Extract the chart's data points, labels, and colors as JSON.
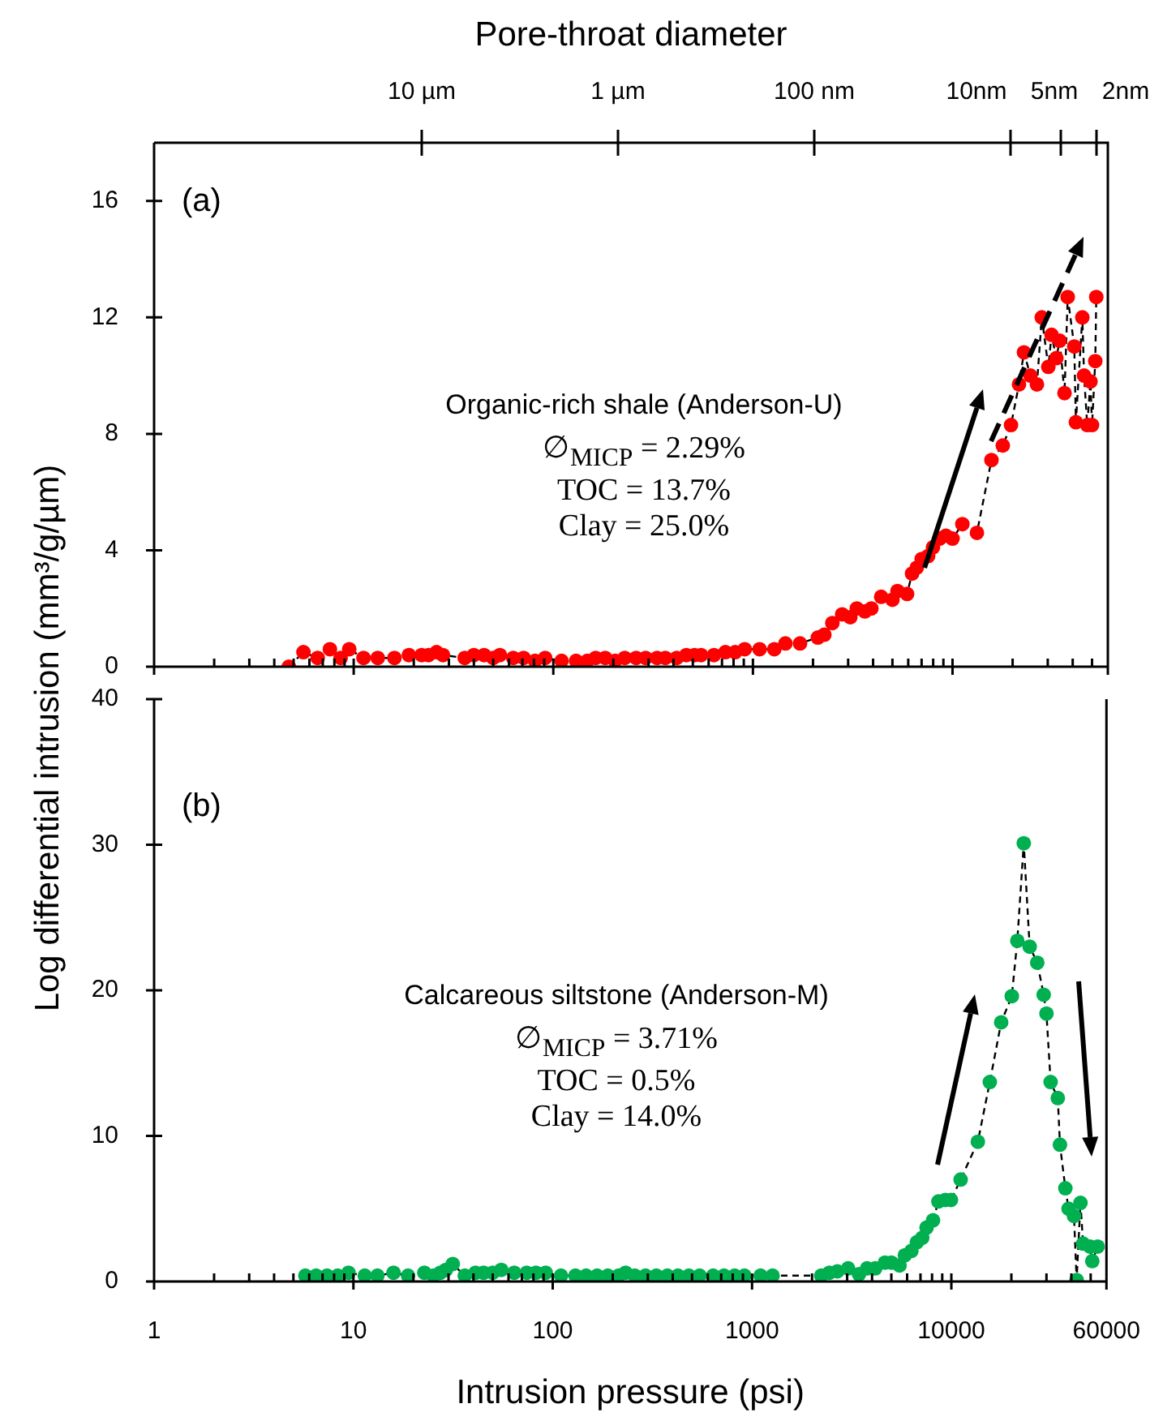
{
  "chart_data": [
    {
      "type": "line",
      "x2label": "Pore-throat diameter",
      "ylabel": "Log differential intrusion (mm³/g/µm)",
      "annotations": [
        "(a)",
        "Organic-rich shale (Anderson-U)",
        "∅$_{MICP}$ = 2.29%",
        "TOC = 13.7%",
        "Clay = 25.0%",
        "10 µm",
        "1 µm",
        "100 nm",
        "10nm",
        "5nm",
        "2nm"
      ],
      "x": [
        4.73,
        5.6,
        6.6,
        7.6,
        8.6,
        9.5,
        11.2,
        13.2,
        16,
        18.9,
        21.9,
        23.7,
        26,
        28,
        36,
        40,
        45,
        50,
        54,
        63,
        71,
        81,
        91,
        110,
        130,
        148,
        163,
        182,
        204,
        228,
        260,
        290,
        331,
        364,
        415,
        464,
        510,
        550,
        638,
        728,
        815,
        910,
        1080,
        1280,
        1455,
        1722,
        2115,
        2280,
        2500,
        2800,
        3075,
        3315,
        3640,
        3920,
        4390,
        5000,
        5300,
        5920,
        6270,
        6620,
        7010,
        7550,
        7980,
        8610,
        9270,
        10000,
        11200,
        13250,
        15670,
        17860,
        19630,
        21530,
        22800,
        24550,
        26480,
        28000,
        30200,
        31340,
        33130,
        34410,
        36400,
        37760,
        40740,
        41500,
        44700,
        45600,
        47300,
        49100,
        50000,
        51900,
        52500
      ],
      "series": [
        {
          "color": "#ff0000",
          "values": [
            0,
            0.5,
            0.3,
            0.6,
            0.3,
            0.6,
            0.3,
            0.3,
            0.3,
            0.4,
            0.4,
            0.4,
            0.5,
            0.4,
            0.3,
            0.4,
            0.4,
            0.3,
            0.4,
            0.3,
            0.3,
            0.2,
            0.3,
            0.2,
            0.2,
            0.2,
            0.3,
            0.3,
            0.2,
            0.3,
            0.3,
            0.3,
            0.3,
            0.3,
            0.3,
            0.4,
            0.4,
            0.4,
            0.4,
            0.5,
            0.5,
            0.6,
            0.6,
            0.6,
            0.8,
            0.8,
            1.0,
            1.1,
            1.5,
            1.8,
            1.7,
            2.0,
            1.9,
            2.0,
            2.4,
            2.3,
            2.6,
            2.5,
            3.2,
            3.4,
            3.7,
            3.8,
            4.1,
            4.4,
            4.5,
            4.4,
            4.9,
            4.6,
            7.1,
            7.6,
            8.3,
            9.7,
            10.8,
            10.0,
            9.7,
            12.0,
            10.3,
            11.4,
            10.6,
            11.2,
            9.4,
            12.7,
            11.0,
            8.4,
            12.0,
            10.0,
            8.3,
            9.8,
            8.3,
            10.5,
            12.7
          ]
        }
      ],
      "xlim": [
        1,
        60000
      ],
      "xticks": [
        1,
        {
          "value": 2,
          "label": null
        },
        {
          "value": 3,
          "label": null
        },
        {
          "value": 4,
          "label": null
        },
        {
          "value": 5,
          "label": null
        },
        {
          "value": 6,
          "label": null
        },
        {
          "value": 7,
          "label": null
        },
        {
          "value": 8,
          "label": null
        },
        {
          "value": 9,
          "label": null
        },
        10,
        {
          "value": 20,
          "label": null
        },
        {
          "value": 30,
          "label": null
        },
        {
          "value": 40,
          "label": null
        },
        {
          "value": 50,
          "label": null
        },
        {
          "value": 60,
          "label": null
        },
        {
          "value": 70,
          "label": null
        },
        {
          "value": 80,
          "label": null
        },
        {
          "value": 90,
          "label": null
        },
        100,
        {
          "value": 200,
          "label": null
        },
        {
          "value": 300,
          "label": null
        },
        {
          "value": 400,
          "label": null
        },
        {
          "value": 500,
          "label": null
        },
        {
          "value": 600,
          "label": null
        },
        {
          "value": 700,
          "label": null
        },
        {
          "value": 800,
          "label": null
        },
        {
          "value": 900,
          "label": null
        },
        1000,
        {
          "value": 2000,
          "label": null
        },
        {
          "value": 3000,
          "label": null
        },
        {
          "value": 4000,
          "label": null
        },
        {
          "value": 5000,
          "label": null
        },
        {
          "value": 6000,
          "label": null
        },
        {
          "value": 7000,
          "label": null
        },
        {
          "value": 8000,
          "label": null
        },
        {
          "value": 9000,
          "label": null
        },
        10000,
        {
          "value": 20000,
          "label": null
        },
        {
          "value": 30000,
          "label": null
        },
        {
          "value": 40000,
          "label": null
        },
        {
          "value": 50000,
          "label": null
        },
        60000
      ],
      "ylim": [
        0,
        18
      ],
      "yticks": [
        0,
        4,
        8,
        12,
        16
      ],
      "log": "x",
      "tick_labels": "y",
      "marker": "circle",
      "line_style": "dashed"
    },
    {
      "type": "line",
      "xlabel": "Intrusion pressure (psi)",
      "annotations": [
        "(b)",
        "Calcareous siltstone (Anderson-M)",
        "∅$_{MICP}$ = 3.71%",
        "TOC = 0.5%",
        "Clay = 14.0%"
      ],
      "x": [
        5.74,
        6.5,
        7.37,
        8.34,
        9.45,
        11.4,
        13.2,
        15.9,
        18.8,
        22.7,
        25.2,
        27.3,
        29.1,
        31.5,
        36.2,
        41,
        45,
        50,
        55.2,
        64.1,
        74.1,
        82.4,
        92.2,
        110,
        130,
        147,
        167,
        189,
        214,
        232,
        258,
        292,
        331,
        376,
        425,
        482,
        546,
        638,
        723,
        818,
        916,
        1104,
        1268,
        2223,
        2443,
        2680,
        3034,
        3440,
        3776,
        4150,
        4645,
        5000,
        5495,
        5846,
        6300,
        6714,
        7140,
        7510,
        8090,
        8610,
        9330,
        9950,
        11130,
        13580,
        15590,
        17780,
        20100,
        21420,
        23080,
        24710,
        26980,
        29050,
        30000,
        31480,
        34200,
        35060,
        37320,
        38730,
        41240,
        42500,
        44440,
        45810,
        49660,
        50930,
        54200
      ],
      "series": [
        {
          "color": "#00b050",
          "values": [
            0.4,
            0.4,
            0.4,
            0.4,
            0.6,
            0.4,
            0.4,
            0.6,
            0.4,
            0.6,
            0.4,
            0.6,
            0.8,
            1.2,
            0.4,
            0.6,
            0.6,
            0.6,
            0.8,
            0.6,
            0.6,
            0.6,
            0.6,
            0.4,
            0.4,
            0.4,
            0.4,
            0.4,
            0.4,
            0.6,
            0.4,
            0.4,
            0.4,
            0.4,
            0.4,
            0.4,
            0.4,
            0.4,
            0.4,
            0.4,
            0.4,
            0.4,
            0.4,
            0.4,
            0.6,
            0.7,
            0.9,
            0.5,
            0.9,
            0.9,
            1.3,
            1.3,
            1.1,
            1.8,
            2.1,
            2.7,
            3.0,
            3.7,
            4.2,
            5.5,
            5.6,
            5.6,
            7.0,
            9.6,
            13.7,
            17.8,
            19.6,
            23.4,
            30.1,
            23.0,
            21.9,
            19.7,
            18.4,
            13.7,
            12.6,
            9.4,
            6.4,
            5.0,
            4.5,
            0.1,
            5.4,
            2.6,
            2.4,
            1.4,
            2.4
          ]
        }
      ],
      "xlim": [
        1,
        60000
      ],
      "xticks": [
        1,
        {
          "value": 2,
          "label": null
        },
        {
          "value": 3,
          "label": null
        },
        {
          "value": 4,
          "label": null
        },
        {
          "value": 5,
          "label": null
        },
        {
          "value": 6,
          "label": null
        },
        {
          "value": 7,
          "label": null
        },
        {
          "value": 8,
          "label": null
        },
        {
          "value": 9,
          "label": null
        },
        10,
        {
          "value": 20,
          "label": null
        },
        {
          "value": 30,
          "label": null
        },
        {
          "value": 40,
          "label": null
        },
        {
          "value": 50,
          "label": null
        },
        {
          "value": 60,
          "label": null
        },
        {
          "value": 70,
          "label": null
        },
        {
          "value": 80,
          "label": null
        },
        {
          "value": 90,
          "label": null
        },
        100,
        {
          "value": 200,
          "label": null
        },
        {
          "value": 300,
          "label": null
        },
        {
          "value": 400,
          "label": null
        },
        {
          "value": 500,
          "label": null
        },
        {
          "value": 600,
          "label": null
        },
        {
          "value": 700,
          "label": null
        },
        {
          "value": 800,
          "label": null
        },
        {
          "value": 900,
          "label": null
        },
        1000,
        {
          "value": 2000,
          "label": null
        },
        {
          "value": 3000,
          "label": null
        },
        {
          "value": 4000,
          "label": null
        },
        {
          "value": 5000,
          "label": null
        },
        {
          "value": 6000,
          "label": null
        },
        {
          "value": 7000,
          "label": null
        },
        {
          "value": 8000,
          "label": null
        },
        {
          "value": 9000,
          "label": null
        },
        10000,
        {
          "value": 20000,
          "label": null
        },
        {
          "value": 30000,
          "label": null
        },
        {
          "value": 40000,
          "label": null
        },
        {
          "value": 50000,
          "label": null
        },
        60000
      ],
      "ylim": [
        0,
        40
      ],
      "yticks": [
        0,
        10,
        20,
        30,
        40
      ],
      "log": "x",
      "marker": "circle",
      "line_style": "dashed"
    }
  ]
}
